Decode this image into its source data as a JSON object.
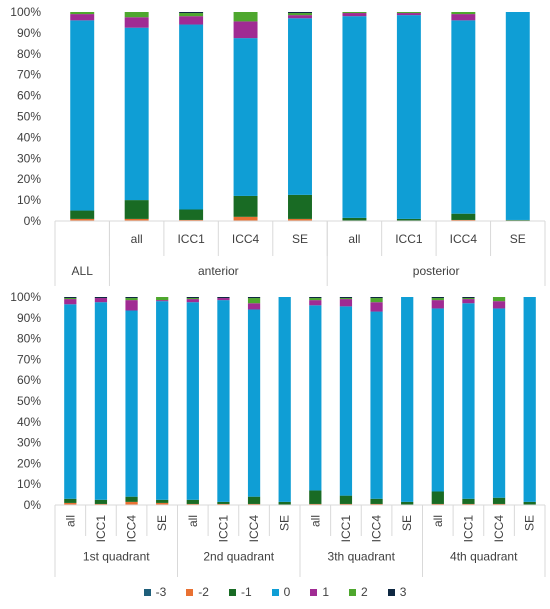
{
  "chart_data": [
    {
      "type": "bar",
      "stacked": true,
      "ylim": [
        0,
        100
      ],
      "y_ticks": [
        "0%",
        "10%",
        "20%",
        "30%",
        "40%",
        "50%",
        "60%",
        "70%",
        "80%",
        "90%",
        "100%"
      ],
      "groups": [
        {
          "label": "ALL",
          "categories": [
            ""
          ]
        },
        {
          "label": "anterior",
          "categories": [
            "all",
            "ICC1",
            "ICC4",
            "SE"
          ]
        },
        {
          "label": "posterior",
          "categories": [
            "all",
            "ICC1",
            "ICC4",
            "SE"
          ]
        }
      ],
      "series": [
        {
          "name": "-3",
          "values": [
            0,
            0,
            0,
            0,
            0,
            0,
            0,
            0,
            0
          ]
        },
        {
          "name": "-2",
          "values": [
            1,
            1,
            0.5,
            2,
            1,
            0,
            0,
            0.5,
            0
          ]
        },
        {
          "name": "-1",
          "values": [
            4,
            9,
            5,
            10,
            11.5,
            1.5,
            1,
            3,
            0.5
          ]
        },
        {
          "name": "0",
          "values": [
            91,
            82.5,
            88.5,
            75.5,
            84.5,
            96.5,
            97.5,
            92.5,
            99.5
          ]
        },
        {
          "name": "1",
          "values": [
            3,
            5,
            4,
            8,
            1.5,
            1.5,
            1,
            3,
            0
          ]
        },
        {
          "name": "2",
          "values": [
            1,
            2.5,
            1.5,
            4.5,
            1,
            0.5,
            0.5,
            1,
            0
          ]
        },
        {
          "name": "3",
          "values": [
            0,
            0,
            0.5,
            0,
            0.5,
            0,
            0,
            0,
            0
          ]
        }
      ]
    },
    {
      "type": "bar",
      "stacked": true,
      "ylim": [
        0,
        100
      ],
      "y_ticks": [
        "0%",
        "10%",
        "20%",
        "30%",
        "40%",
        "50%",
        "60%",
        "70%",
        "80%",
        "90%",
        "100%"
      ],
      "groups": [
        {
          "label": "1st quadrant",
          "categories": [
            "all",
            "ICC1",
            "ICC4",
            "SE"
          ]
        },
        {
          "label": "2nd quadrant",
          "categories": [
            "all",
            "ICC1",
            "ICC4",
            "SE"
          ]
        },
        {
          "label": "3th quadrant",
          "categories": [
            "all",
            "ICC1",
            "ICC4",
            "SE"
          ]
        },
        {
          "label": "4th quadrant",
          "categories": [
            "all",
            "ICC1",
            "ICC4",
            "SE"
          ]
        }
      ],
      "series": [
        {
          "name": "-3",
          "values": [
            0,
            0,
            0,
            0,
            0,
            0,
            0,
            0,
            0,
            0,
            0,
            0,
            0,
            0,
            0,
            0
          ]
        },
        {
          "name": "-2",
          "values": [
            1,
            0.5,
            1.5,
            1,
            0.5,
            0.5,
            0.5,
            0,
            0.5,
            0.5,
            0.5,
            0,
            0.5,
            0.5,
            0.5,
            0
          ]
        },
        {
          "name": "-1",
          "values": [
            2,
            2,
            2.5,
            1.5,
            2,
            1,
            3.5,
            1.5,
            6.5,
            4,
            2.5,
            1.5,
            6,
            2.5,
            3,
            1.5
          ]
        },
        {
          "name": "0",
          "values": [
            93.5,
            95,
            89.5,
            95.5,
            95,
            97,
            90,
            98.5,
            89,
            91,
            90,
            98.5,
            88,
            94,
            91,
            98.5
          ]
        },
        {
          "name": "1",
          "values": [
            2.5,
            2,
            5,
            0.5,
            1.5,
            1,
            3,
            0,
            2.5,
            3.5,
            4.5,
            0,
            4,
            2,
            3.5,
            0
          ]
        },
        {
          "name": "2",
          "values": [
            0.5,
            0,
            1,
            1.5,
            0.5,
            0,
            2.5,
            0,
            1,
            0.5,
            2,
            0,
            1,
            0.5,
            2,
            0
          ]
        },
        {
          "name": "3",
          "values": [
            0.5,
            0.5,
            0.5,
            0,
            0.5,
            0.5,
            0.5,
            0,
            0.5,
            0.5,
            0.5,
            0,
            0.5,
            0.5,
            0,
            0
          ]
        }
      ]
    }
  ],
  "legend": [
    {
      "label": "-3",
      "color": "#1f5f7a"
    },
    {
      "label": "-2",
      "color": "#e97132"
    },
    {
      "label": "-1",
      "color": "#196b24"
    },
    {
      "label": "0",
      "color": "#0f9ed5"
    },
    {
      "label": "1",
      "color": "#a02b93"
    },
    {
      "label": "2",
      "color": "#4ea72e"
    },
    {
      "label": "3",
      "color": "#0e2841"
    }
  ],
  "colors": {
    "axis": "#d9d9d9",
    "text": "#404040"
  }
}
